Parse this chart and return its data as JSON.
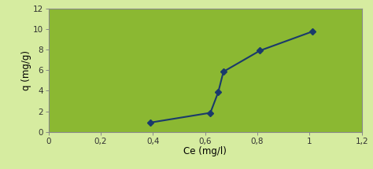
{
  "x": [
    0.39,
    0.62,
    0.65,
    0.67,
    0.81,
    1.01
  ],
  "y": [
    0.9,
    1.85,
    3.85,
    5.85,
    7.9,
    9.75
  ],
  "xlim": [
    0,
    1.2
  ],
  "ylim": [
    0,
    12
  ],
  "xticks": [
    0,
    0.2,
    0.4,
    0.6,
    0.8,
    1.0,
    1.2
  ],
  "yticks": [
    0,
    2,
    4,
    6,
    8,
    10,
    12
  ],
  "xtick_labels": [
    "0",
    "0,2",
    "0,4",
    "0,6",
    "0,8",
    "1",
    "1,2"
  ],
  "ytick_labels": [
    "0",
    "2",
    "4",
    "6",
    "8",
    "10",
    "12"
  ],
  "xlabel": "Ce (mg/l)",
  "ylabel": "q (mg/g)",
  "line_color": "#1a3a6b",
  "marker_color": "#1a3a6b",
  "bg_plot": "#8bb832",
  "bg_fig": "#d6eca0",
  "marker": "D",
  "marker_size": 4,
  "line_width": 1.5,
  "spine_color": "#888888",
  "tick_color": "#333333",
  "label_fontsize": 8.5,
  "tick_fontsize": 7.5
}
